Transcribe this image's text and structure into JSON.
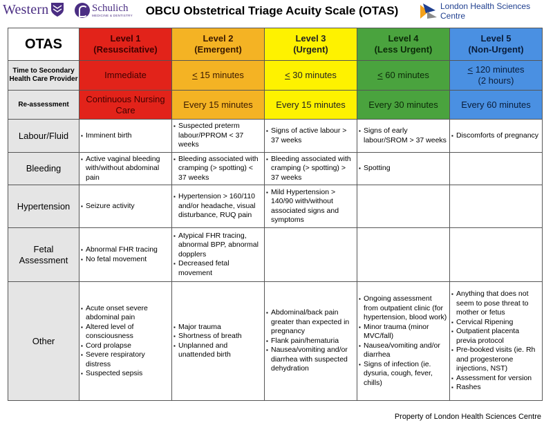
{
  "header": {
    "logo_western": "Western",
    "logo_schulich": "Schulich",
    "logo_schulich_sub": "MEDICINE & DENTISTRY",
    "title": "OBCU Obstetrical Triage Acuity Scale (OTAS)",
    "logo_lhsc": "London Health Sciences Centre"
  },
  "colors": {
    "level1": "#e2231a",
    "level2": "#f4b324",
    "level3": "#fef200",
    "level4": "#4aa33e",
    "level5": "#4a90e2",
    "label_bg": "#e5e5e5",
    "western_purple": "#4b2e83"
  },
  "table": {
    "corner": "OTAS",
    "levels": [
      {
        "name": "Level 1",
        "subtitle": "(Resuscitative)"
      },
      {
        "name": "Level 2",
        "subtitle": "(Emergent)"
      },
      {
        "name": "Level 3",
        "subtitle": "(Urgent)"
      },
      {
        "name": "Level 4",
        "subtitle": "(Less Urgent)"
      },
      {
        "name": "Level 5",
        "subtitle": "(Non-Urgent)"
      }
    ],
    "time_row": {
      "label": "Time to Secondary Health Care Provider",
      "values": [
        {
          "prefix": "",
          "text": "Immediate",
          "sub": ""
        },
        {
          "prefix": "<",
          "text": " 15 minutes",
          "sub": ""
        },
        {
          "prefix": "<",
          "text": " 30 minutes",
          "sub": ""
        },
        {
          "prefix": "<",
          "text": " 60 minutes",
          "sub": ""
        },
        {
          "prefix": "<",
          "text": " 120 minutes",
          "sub": "(2 hours)"
        }
      ]
    },
    "reassess_row": {
      "label": "Re-assessment",
      "values": [
        "Continuous Nursing Care",
        "Every 15 minutes",
        "Every 15 minutes",
        "Every 30 minutes",
        "Every 60 minutes"
      ]
    },
    "rows": [
      {
        "label": "Labour/Fluid",
        "cells": [
          [
            "Imminent birth"
          ],
          [
            "Suspected preterm labour/PPROM < 37 weeks"
          ],
          [
            "Signs of active labour > 37 weeks"
          ],
          [
            "Signs of early labour/SROM > 37 weeks"
          ],
          [
            "Discomforts of pregnancy"
          ]
        ]
      },
      {
        "label": "Bleeding",
        "cells": [
          [
            "Active vaginal bleeding with/without abdominal pain"
          ],
          [
            "Bleeding associated with cramping (> spotting) < 37 weeks"
          ],
          [
            "Bleeding associated with cramping (> spotting) > 37 weeks"
          ],
          [
            "Spotting"
          ],
          []
        ]
      },
      {
        "label": "Hypertension",
        "cells": [
          [
            "Seizure activity"
          ],
          [
            "Hypertension > 160/110 and/or headache, visual disturbance, RUQ pain"
          ],
          [
            "Mild Hypertension > 140/90 with/without associated signs and symptoms"
          ],
          [],
          []
        ]
      },
      {
        "label": "Fetal Assessment",
        "cells": [
          [
            "Abnormal FHR tracing",
            "No fetal movement"
          ],
          [
            "Atypical FHR tracing, abnormal BPP, abnormal dopplers",
            "Decreased fetal movement"
          ],
          [],
          [],
          []
        ]
      },
      {
        "label": "Other",
        "cells": [
          [
            "Acute onset severe abdominal pain",
            "Altered level of consciousness",
            "Cord prolapse",
            "Severe respiratory distress",
            "Suspected sepsis"
          ],
          [
            "Major trauma",
            "Shortness of breath",
            "Unplanned and unattended birth"
          ],
          [
            "Abdominal/back pain greater than expected in pregnancy",
            "Flank pain/hematuria",
            "Nausea/vomiting and/or diarrhea with suspected dehydration"
          ],
          [
            "Ongoing assessment from outpatient clinic (for hypertension, blood work)",
            "Minor trauma (minor MVC/fall)",
            "Nausea/vomiting and/or diarrhea",
            "Signs of infection (ie. dysuria, cough, fever, chills)"
          ],
          [
            "Anything that does not seem to pose threat to mother or fetus",
            "Cervical Ripening",
            "Outpatient placenta previa protocol",
            "Pre-booked visits (ie. Rh and progesterone injections, NST)",
            "Assessment for version",
            "Rashes"
          ]
        ]
      }
    ]
  },
  "footer": {
    "text": "Property of London Health Sciences Centre"
  }
}
